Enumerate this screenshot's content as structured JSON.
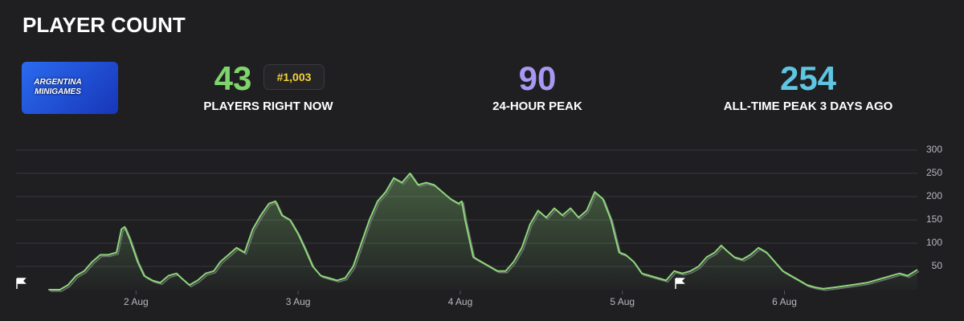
{
  "header": {
    "title": "PLAYER COUNT"
  },
  "thumbnail": {
    "lines": [
      "ARGENTINA",
      "MINIGAMES"
    ]
  },
  "stats": [
    {
      "value": "43",
      "badge": "#1,003",
      "label": "PLAYERS RIGHT NOW",
      "color": "#7fd46c"
    },
    {
      "value": "90",
      "label": "24-HOUR PEAK",
      "color": "#a998f2"
    },
    {
      "value": "254",
      "label": "ALL-TIME PEAK 3 DAYS AGO",
      "color": "#5fc6e2"
    }
  ],
  "chart_data": {
    "type": "area",
    "color": "#8fd67a",
    "x": [
      1.46,
      1.53,
      1.58,
      1.63,
      1.68,
      1.73,
      1.78,
      1.83,
      1.88,
      1.91,
      1.93,
      1.96,
      1.98,
      2.01,
      2.05,
      2.1,
      2.15,
      2.2,
      2.25,
      2.28,
      2.33,
      2.38,
      2.43,
      2.48,
      2.52,
      2.57,
      2.62,
      2.67,
      2.72,
      2.77,
      2.82,
      2.86,
      2.9,
      2.95,
      3.0,
      3.04,
      3.09,
      3.14,
      3.19,
      3.24,
      3.29,
      3.34,
      3.39,
      3.44,
      3.49,
      3.54,
      3.59,
      3.64,
      3.69,
      3.74,
      3.79,
      3.84,
      3.89,
      3.94,
      3.99,
      4.01,
      4.03,
      4.08,
      4.13,
      4.18,
      4.23,
      4.28,
      4.33,
      4.38,
      4.43,
      4.48,
      4.53,
      4.58,
      4.63,
      4.68,
      4.73,
      4.78,
      4.83,
      4.88,
      4.93,
      4.98,
      5.02,
      5.07,
      5.12,
      5.17,
      5.22,
      5.27,
      5.32,
      5.37,
      5.42,
      5.47,
      5.52,
      5.57,
      5.61,
      5.64,
      5.69,
      5.74,
      5.79,
      5.84,
      5.89,
      5.94,
      5.99,
      6.04,
      6.09,
      6.14,
      6.19,
      6.24,
      6.31,
      6.41,
      6.51,
      6.61,
      6.66,
      6.71,
      6.76,
      6.82
    ],
    "values": [
      0,
      0,
      10,
      30,
      40,
      60,
      75,
      75,
      80,
      130,
      135,
      110,
      90,
      60,
      30,
      20,
      15,
      30,
      35,
      25,
      10,
      20,
      35,
      40,
      60,
      75,
      90,
      80,
      130,
      160,
      185,
      190,
      160,
      150,
      120,
      90,
      50,
      30,
      25,
      20,
      25,
      50,
      100,
      150,
      190,
      210,
      240,
      230,
      250,
      225,
      230,
      225,
      210,
      195,
      185,
      190,
      150,
      70,
      60,
      50,
      40,
      40,
      60,
      90,
      140,
      170,
      155,
      175,
      160,
      175,
      155,
      170,
      210,
      195,
      150,
      80,
      75,
      60,
      35,
      30,
      25,
      20,
      40,
      35,
      40,
      50,
      70,
      80,
      95,
      85,
      70,
      65,
      75,
      90,
      80,
      60,
      40,
      30,
      20,
      10,
      5,
      2,
      5,
      10,
      15,
      25,
      30,
      35,
      30,
      43
    ],
    "xlim": [
      1.26,
      6.82
    ],
    "xticks": [
      {
        "value": 2,
        "label": "2 Aug"
      },
      {
        "value": 3,
        "label": "3 Aug"
      },
      {
        "value": 4,
        "label": "4 Aug"
      },
      {
        "value": 5,
        "label": "5 Aug"
      },
      {
        "value": 6,
        "label": "6 Aug"
      }
    ],
    "ylim": [
      0,
      300
    ],
    "yticks": [
      50,
      100,
      150,
      200,
      250,
      300
    ],
    "grid": true
  }
}
